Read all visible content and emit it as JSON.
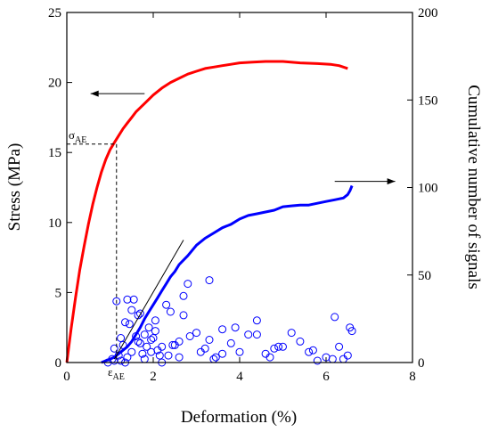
{
  "chart_data": {
    "type": "scatter",
    "xlabel": "Deformation (%)",
    "ylabel_left": "Stress (MPa)",
    "ylabel_right": "Cumulative number of signals",
    "xlim": [
      0,
      8
    ],
    "ylim_left": [
      0,
      25
    ],
    "ylim_right": [
      0,
      200
    ],
    "xticks": [
      0,
      2,
      4,
      6,
      8
    ],
    "yticks_left": [
      0,
      5,
      10,
      15,
      20,
      25
    ],
    "yticks_right": [
      0,
      50,
      100,
      150,
      200
    ],
    "grid": false,
    "annotations": {
      "sigma_label": "σ",
      "sigma_sub": "AE",
      "epsilon_label": "ε",
      "epsilon_sub": "AE",
      "sigma_ae": 15.6,
      "epsilon_ae": 1.15
    },
    "series": [
      {
        "axis": "left",
        "color": "#ff0000",
        "style": "line",
        "x": [
          0,
          0.1,
          0.2,
          0.3,
          0.4,
          0.5,
          0.6,
          0.7,
          0.8,
          0.9,
          1.0,
          1.1,
          1.2,
          1.3,
          1.4,
          1.5,
          1.6,
          1.8,
          2.0,
          2.2,
          2.4,
          2.6,
          2.8,
          3.0,
          3.2,
          3.4,
          3.6,
          3.8,
          4.0,
          4.3,
          4.6,
          5.0,
          5.4,
          5.8,
          6.1,
          6.3,
          6.5
        ],
        "y": [
          0,
          2.4,
          4.6,
          6.6,
          8.3,
          9.9,
          11.3,
          12.5,
          13.6,
          14.5,
          15.2,
          15.7,
          16.2,
          16.7,
          17.1,
          17.5,
          17.9,
          18.5,
          19.1,
          19.6,
          20.0,
          20.3,
          20.6,
          20.8,
          21.0,
          21.1,
          21.2,
          21.3,
          21.4,
          21.45,
          21.5,
          21.5,
          21.4,
          21.35,
          21.3,
          21.2,
          21.0
        ]
      },
      {
        "axis": "right",
        "color": "#0000ff",
        "style": "line",
        "x": [
          0.8,
          0.9,
          1.0,
          1.1,
          1.2,
          1.3,
          1.4,
          1.5,
          1.6,
          1.7,
          1.8,
          1.9,
          2.0,
          2.1,
          2.2,
          2.3,
          2.4,
          2.5,
          2.6,
          2.8,
          3.0,
          3.2,
          3.4,
          3.6,
          3.8,
          4.0,
          4.2,
          4.4,
          4.6,
          4.8,
          5.0,
          5.2,
          5.4,
          5.6,
          5.8,
          6.0,
          6.2,
          6.4,
          6.5,
          6.55,
          6.6
        ],
        "y": [
          0,
          1,
          2,
          3,
          5,
          7,
          9,
          12,
          16,
          20,
          25,
          29,
          33,
          37,
          41,
          45,
          49,
          52,
          56,
          61,
          67,
          71,
          74,
          77,
          79,
          82,
          84,
          85,
          86,
          87,
          89,
          89.5,
          90,
          90,
          91,
          92,
          93,
          94,
          96,
          98,
          101
        ]
      },
      {
        "axis": "right",
        "color": "#0000ff",
        "style": "scatter",
        "x": [
          0.95,
          1.05,
          1.1,
          1.15,
          1.2,
          1.25,
          1.3,
          1.35,
          1.4,
          1.45,
          1.5,
          1.55,
          1.6,
          1.65,
          1.7,
          1.75,
          1.8,
          1.85,
          1.9,
          1.95,
          2.0,
          2.05,
          2.1,
          2.15,
          2.2,
          2.3,
          2.4,
          2.5,
          2.6,
          2.7,
          2.8,
          3.0,
          3.2,
          3.3,
          3.4,
          3.6,
          3.8,
          4.0,
          4.2,
          4.4,
          4.6,
          4.8,
          5.0,
          5.4,
          5.6,
          5.8,
          6.0,
          6.2,
          6.4,
          6.5,
          6.6,
          1.25,
          1.5,
          1.7,
          2.05,
          2.35,
          2.7,
          3.3,
          3.6,
          4.4,
          4.9,
          5.7,
          6.15,
          6.55,
          1.1,
          1.35,
          1.8,
          2.2,
          2.6,
          3.1,
          3.9,
          4.7,
          5.2,
          6.3,
          1.4,
          1.65,
          1.95,
          2.45,
          2.85,
          3.45
        ],
        "y": [
          0,
          2,
          8,
          35,
          4,
          1,
          10,
          0,
          3,
          22,
          6,
          36,
          15,
          12,
          28,
          5,
          2,
          9,
          20,
          13,
          14,
          18,
          7,
          4,
          0,
          33,
          29,
          10,
          3,
          27,
          45,
          17,
          8,
          47,
          2,
          19,
          11,
          6,
          16,
          24,
          5,
          8,
          9,
          12,
          6,
          1,
          3,
          26,
          2,
          4,
          18,
          14,
          30,
          11,
          24,
          4,
          38,
          13,
          5,
          16,
          9,
          7,
          2,
          20,
          1,
          23,
          16,
          9,
          12,
          6,
          20,
          3,
          17,
          9,
          36,
          27,
          6,
          10,
          15,
          3
        ]
      }
    ]
  }
}
